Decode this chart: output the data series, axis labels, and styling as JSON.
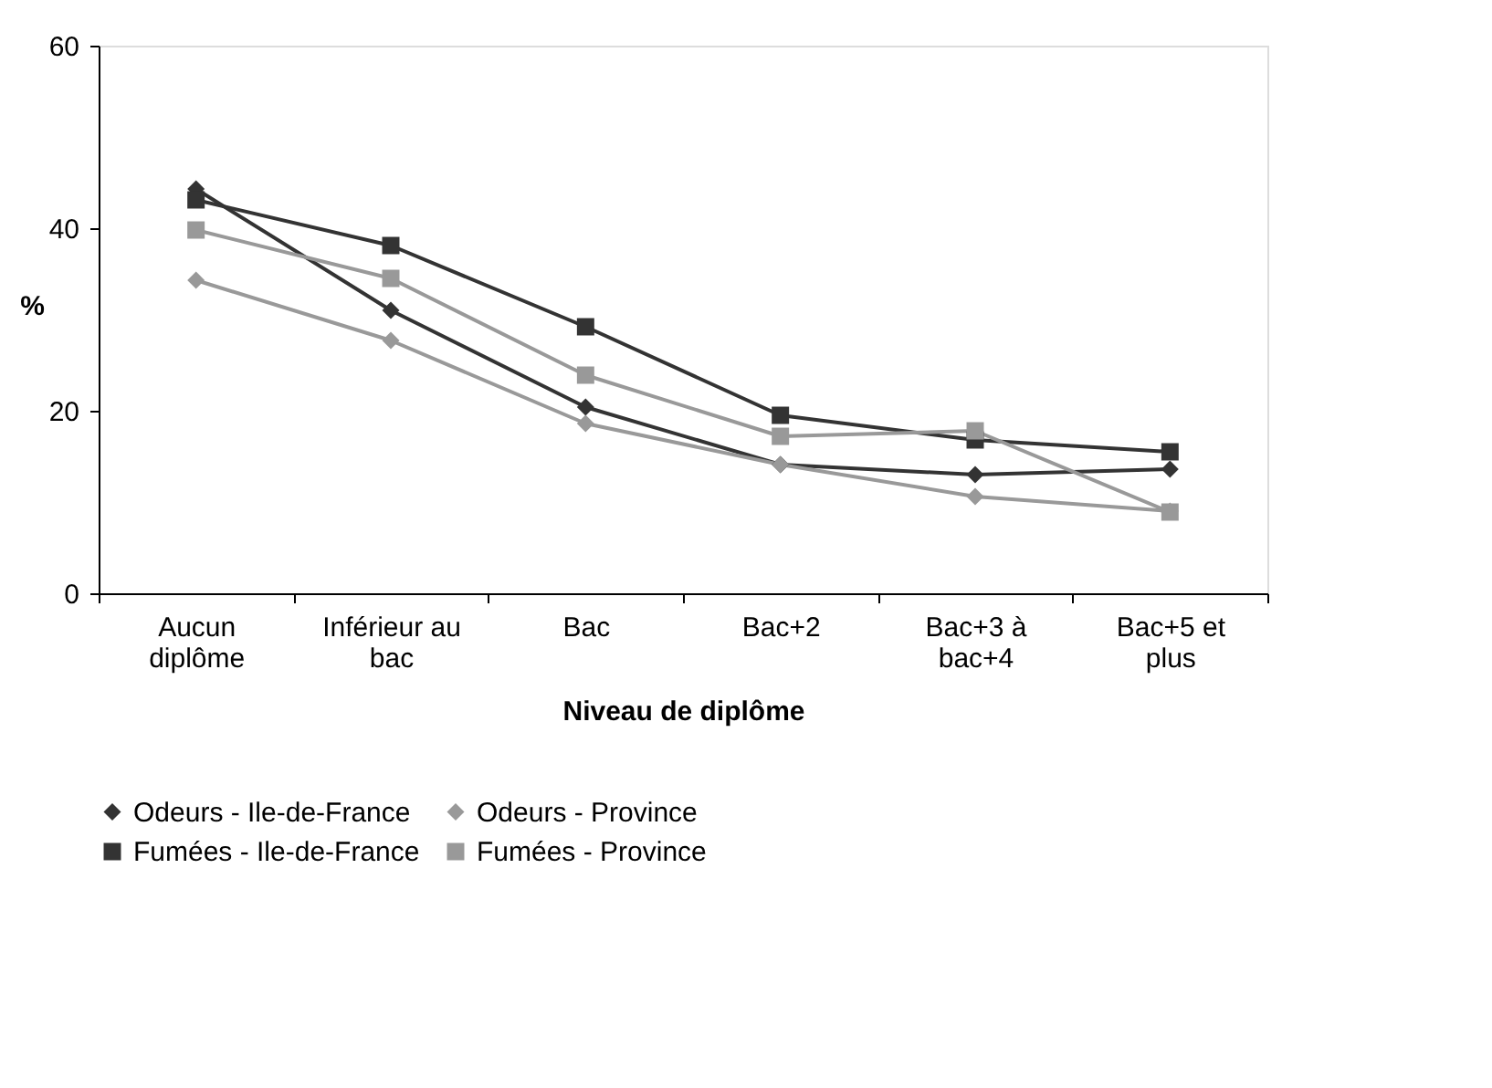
{
  "chart_data": {
    "type": "line",
    "xlabel": "Niveau de diplôme",
    "ylabel": "%",
    "categories": [
      "Aucun diplôme",
      "Inférieur au bac",
      "Bac",
      "Bac+2",
      "Bac+3 à bac+4",
      "Bac+5 et plus"
    ],
    "ylim": [
      0,
      60
    ],
    "yticks": [
      0,
      20,
      40,
      60
    ],
    "grid": false,
    "legend": "bottom",
    "line_style": "solid",
    "series": [
      {
        "name": "Odeurs - Ile-de-France",
        "color": "#333333",
        "marker": "diamond",
        "values": [
          44.3,
          31.0,
          20.4,
          14.1,
          13.0,
          13.6
        ]
      },
      {
        "name": "Odeurs - Province",
        "color": "#999999",
        "marker": "diamond",
        "values": [
          34.3,
          27.7,
          18.6,
          14.1,
          10.6,
          9.0
        ]
      },
      {
        "name": "Fumées - Ile-de-France",
        "color": "#333333",
        "marker": "square",
        "values": [
          43.1,
          38.1,
          29.2,
          19.5,
          16.8,
          15.5
        ]
      },
      {
        "name": "Fumées - Province",
        "color": "#999999",
        "marker": "square",
        "values": [
          39.8,
          34.5,
          23.9,
          17.2,
          17.8,
          8.9
        ]
      }
    ]
  }
}
